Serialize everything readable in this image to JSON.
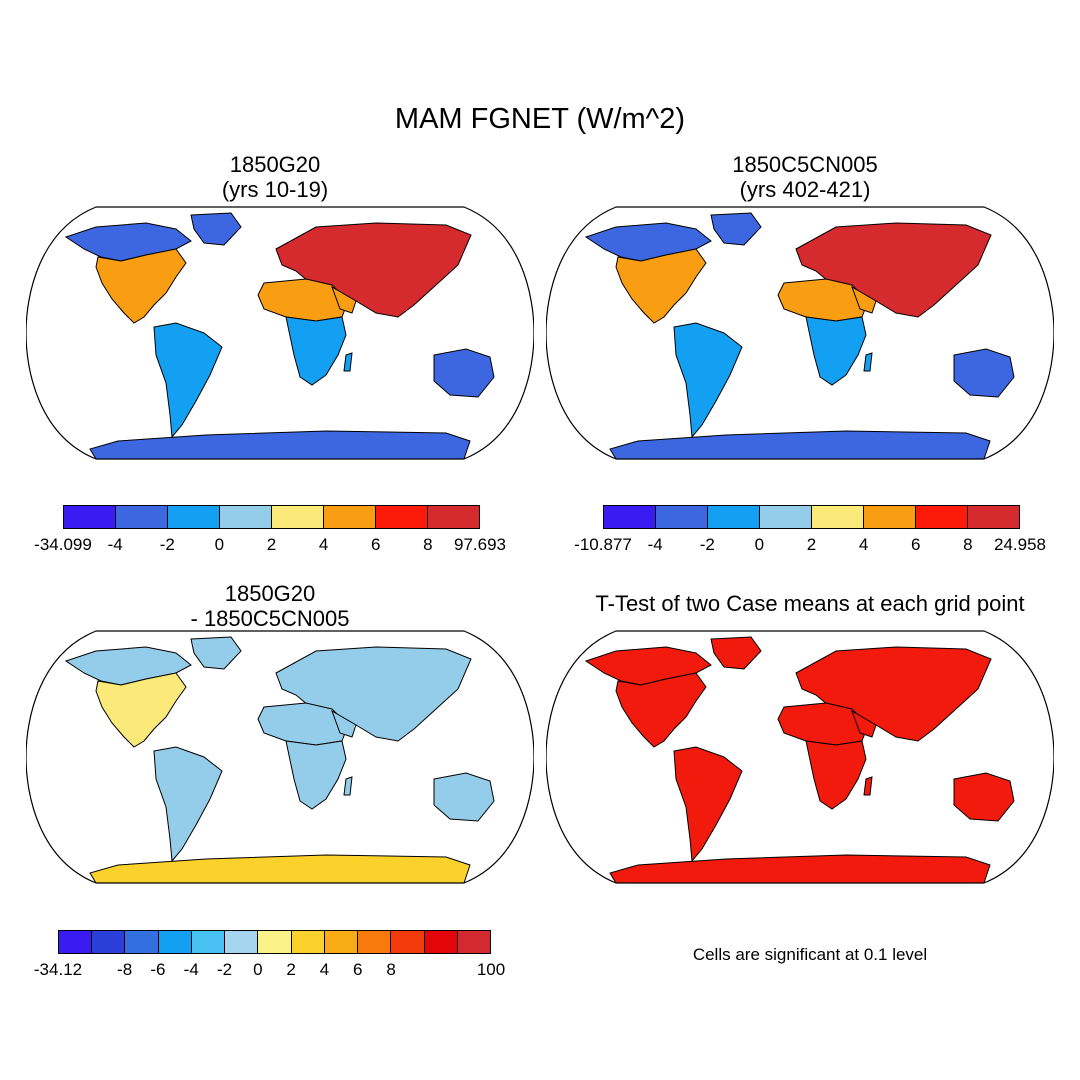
{
  "title": "MAM FGNET (W/m^2)",
  "panels": [
    {
      "id": "p1",
      "title_line1": "1850G20",
      "title_line2": "(yrs 10-19)"
    },
    {
      "id": "p2",
      "title_line1": "1850C5CN005",
      "title_line2": "(yrs 402-421)"
    },
    {
      "id": "p3",
      "title_line1": "1850G20",
      "title_line2": "- 1850C5CN005"
    },
    {
      "id": "p4",
      "title_line1": "T-Test of two Case means at each grid point",
      "title_line2": ""
    }
  ],
  "colorbars": [
    {
      "id": "cbar1",
      "colors": [
        "#3a1cf2",
        "#3d67e0",
        "#14a0f2",
        "#94cdea",
        "#fbea7a",
        "#f99d12",
        "#fb1b08",
        "#d52a2e"
      ],
      "labels": [
        "-34.099",
        "-4",
        "-2",
        "0",
        "2",
        "4",
        "6",
        "8",
        "97.693"
      ]
    },
    {
      "id": "cbar2",
      "colors": [
        "#3a1cf2",
        "#3d67e0",
        "#14a0f2",
        "#94cdea",
        "#fbea7a",
        "#f99d12",
        "#fb1b08",
        "#d52a2e"
      ],
      "labels": [
        "-10.877",
        "-4",
        "-2",
        "0",
        "2",
        "4",
        "6",
        "8",
        "24.958"
      ]
    },
    {
      "id": "cbar3",
      "colors": [
        "#3a1cf2",
        "#2a3fd8",
        "#3270e0",
        "#14a0f2",
        "#48c0f2",
        "#a6d6ef",
        "#fbf28a",
        "#fbd12c",
        "#f9ab16",
        "#f97a0c",
        "#f33a0a",
        "#e4060a",
        "#d22a2e"
      ],
      "labels": [
        "-34.12",
        "",
        "-8",
        "-6",
        "-4",
        "-2",
        "0",
        "2",
        "4",
        "6",
        "8",
        "",
        "",
        "100"
      ]
    }
  ],
  "significance_note": "Cells are significant at 0.1 level",
  "map_colors": {
    "p1": {
      "north_america": "#f99d12",
      "canada": "#3d67e0",
      "eurasia": "#d52a2e",
      "africa_north": "#f99d12",
      "africa_south": "#14a0f2",
      "south_america": "#14a0f2",
      "australia": "#3d67e0",
      "antarctica": "#3d67e0"
    },
    "p2": {
      "north_america": "#f99d12",
      "canada": "#3d67e0",
      "eurasia": "#d52a2e",
      "africa_north": "#f99d12",
      "africa_south": "#14a0f2",
      "south_america": "#14a0f2",
      "australia": "#3d67e0",
      "antarctica": "#3d67e0"
    },
    "p3": {
      "north_america": "#fbea7a",
      "canada": "#94cdea",
      "eurasia": "#94cdea",
      "africa_north": "#94cdea",
      "africa_south": "#94cdea",
      "south_america": "#94cdea",
      "australia": "#94cdea",
      "antarctica": "#fbd12c"
    },
    "p4": {
      "north_america": "#f11a0c",
      "canada": "#f11a0c",
      "eurasia": "#f11a0c",
      "africa_north": "#f11a0c",
      "africa_south": "#f11a0c",
      "south_america": "#f11a0c",
      "australia": "#f11a0c",
      "antarctica": "#f11a0c"
    }
  }
}
